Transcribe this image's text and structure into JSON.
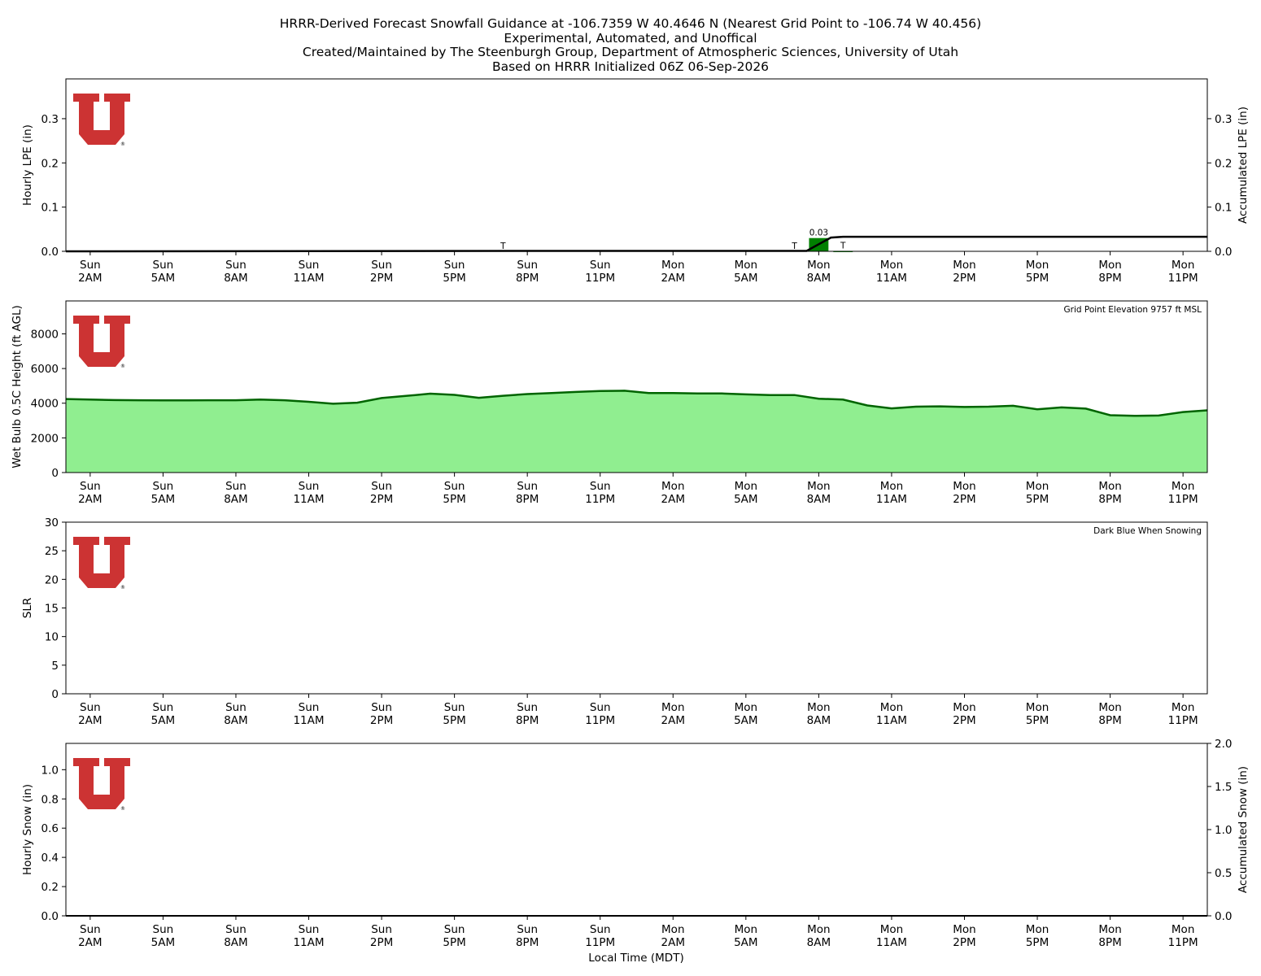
{
  "titles": {
    "line1": "HRRR-Derived Forecast Snowfall Guidance at -106.7359 W 40.4646 N (Nearest Grid Point to -106.74 W 40.456)",
    "line2": "Experimental, Automated, and Unoffical",
    "line3": "Created/Maintained by The Steenburgh Group, Department of Atmospheric Sciences, University of Utah",
    "line4": "Based on HRRR Initialized 06Z 06-Sep-2026"
  },
  "x_axis": {
    "label": "Local Time (MDT)",
    "tick_hours": [
      0,
      3,
      6,
      9,
      12,
      15,
      18,
      21,
      24,
      27,
      30,
      33,
      36,
      39,
      42,
      45
    ],
    "tick_labels": [
      [
        "Sun",
        "2AM"
      ],
      [
        "Sun",
        "5AM"
      ],
      [
        "Sun",
        "8AM"
      ],
      [
        "Sun",
        "11AM"
      ],
      [
        "Sun",
        "2PM"
      ],
      [
        "Sun",
        "5PM"
      ],
      [
        "Sun",
        "8PM"
      ],
      [
        "Sun",
        "11PM"
      ],
      [
        "Mon",
        "2AM"
      ],
      [
        "Mon",
        "5AM"
      ],
      [
        "Mon",
        "8AM"
      ],
      [
        "Mon",
        "11AM"
      ],
      [
        "Mon",
        "2PM"
      ],
      [
        "Mon",
        "5PM"
      ],
      [
        "Mon",
        "8PM"
      ],
      [
        "Mon",
        "11PM"
      ]
    ],
    "range_hours": [
      -1,
      46
    ]
  },
  "colors": {
    "logo_red": "#CC3333",
    "lpe_bar": "#008000",
    "wetbulb_fill": "#90EE90",
    "wetbulb_line": "#006400",
    "accum_line": "#000000"
  },
  "logo": {
    "registered_mark": "®"
  },
  "chart_data": [
    {
      "type": "bar",
      "name": "hourly-lpe-panel",
      "ylabel": "Hourly LPE (in)",
      "ylabel_right": "Accumulated LPE (in)",
      "ylim": [
        0,
        0.39
      ],
      "yticks": [
        0.0,
        0.1,
        0.2,
        0.3
      ],
      "ytick_labels": [
        "0.0",
        "0.1",
        "0.2",
        "0.3"
      ],
      "ytick_labels_right": [
        "0.0",
        "0.1",
        "0.2",
        "0.3"
      ],
      "hourly_bars": [
        {
          "hour": 30,
          "value": 0.03,
          "label": "0.03"
        },
        {
          "hour": 31,
          "value": 0.001,
          "label": "T"
        }
      ],
      "trace_labels": [
        {
          "hour": 17,
          "label": "T"
        },
        {
          "hour": 29,
          "label": "T"
        }
      ],
      "accumulated": {
        "x": [
          -1,
          17.5,
          29.5,
          30.5,
          31,
          46
        ],
        "y": [
          0.0,
          0.001,
          0.001,
          0.031,
          0.033,
          0.033
        ]
      }
    },
    {
      "type": "area",
      "name": "wet-bulb-height-panel",
      "ylabel": "Wet Bulb 0.5C Height (ft AGL)",
      "annotation": "Grid Point Elevation 9757 ft MSL",
      "ylim": [
        0,
        9900
      ],
      "yticks": [
        0,
        2000,
        4000,
        6000,
        8000
      ],
      "ytick_labels": [
        "0",
        "2000",
        "4000",
        "6000",
        "8000"
      ],
      "x": [
        -1,
        0,
        1,
        2,
        3,
        4,
        5,
        6,
        7,
        8,
        9,
        10,
        11,
        12,
        13,
        14,
        15,
        16,
        17,
        18,
        19,
        20,
        21,
        22,
        23,
        24,
        25,
        26,
        27,
        28,
        29,
        30,
        31,
        32,
        33,
        34,
        35,
        36,
        37,
        38,
        39,
        40,
        41,
        42,
        43,
        44,
        45,
        46
      ],
      "values": [
        4240,
        4210,
        4180,
        4170,
        4160,
        4160,
        4170,
        4170,
        4210,
        4170,
        4080,
        3970,
        4030,
        4300,
        4420,
        4550,
        4480,
        4310,
        4430,
        4530,
        4590,
        4650,
        4700,
        4720,
        4590,
        4590,
        4560,
        4560,
        4510,
        4470,
        4470,
        4260,
        4210,
        3870,
        3700,
        3800,
        3820,
        3780,
        3800,
        3850,
        3650,
        3760,
        3690,
        3310,
        3270,
        3290,
        3490,
        3590
      ]
    },
    {
      "type": "line",
      "name": "slr-panel",
      "ylabel": "SLR",
      "annotation": "Dark Blue When Snowing",
      "ylim": [
        0,
        30
      ],
      "yticks": [
        0,
        5,
        10,
        15,
        20,
        25,
        30
      ],
      "ytick_labels": [
        "0",
        "5",
        "10",
        "15",
        "20",
        "25",
        "30"
      ],
      "values": []
    },
    {
      "type": "bar",
      "name": "hourly-snow-panel",
      "ylabel": "Hourly Snow (in)",
      "ylabel_right": "Accumulated Snow (in)",
      "ylim": [
        0,
        1.18
      ],
      "yticks": [
        0.0,
        0.2,
        0.4,
        0.6,
        0.8,
        1.0
      ],
      "ytick_labels": [
        "0.0",
        "0.2",
        "0.4",
        "0.6",
        "0.8",
        "1.0"
      ],
      "ylim_right": [
        0,
        2.0
      ],
      "yticks_right": [
        0.0,
        0.5,
        1.0,
        1.5,
        2.0
      ],
      "ytick_labels_right": [
        "0.0",
        "0.5",
        "1.0",
        "1.5",
        "2.0"
      ],
      "hourly_bars": [],
      "accumulated": {
        "x": [
          -1,
          46
        ],
        "y": [
          0.0,
          0.0
        ]
      }
    }
  ]
}
